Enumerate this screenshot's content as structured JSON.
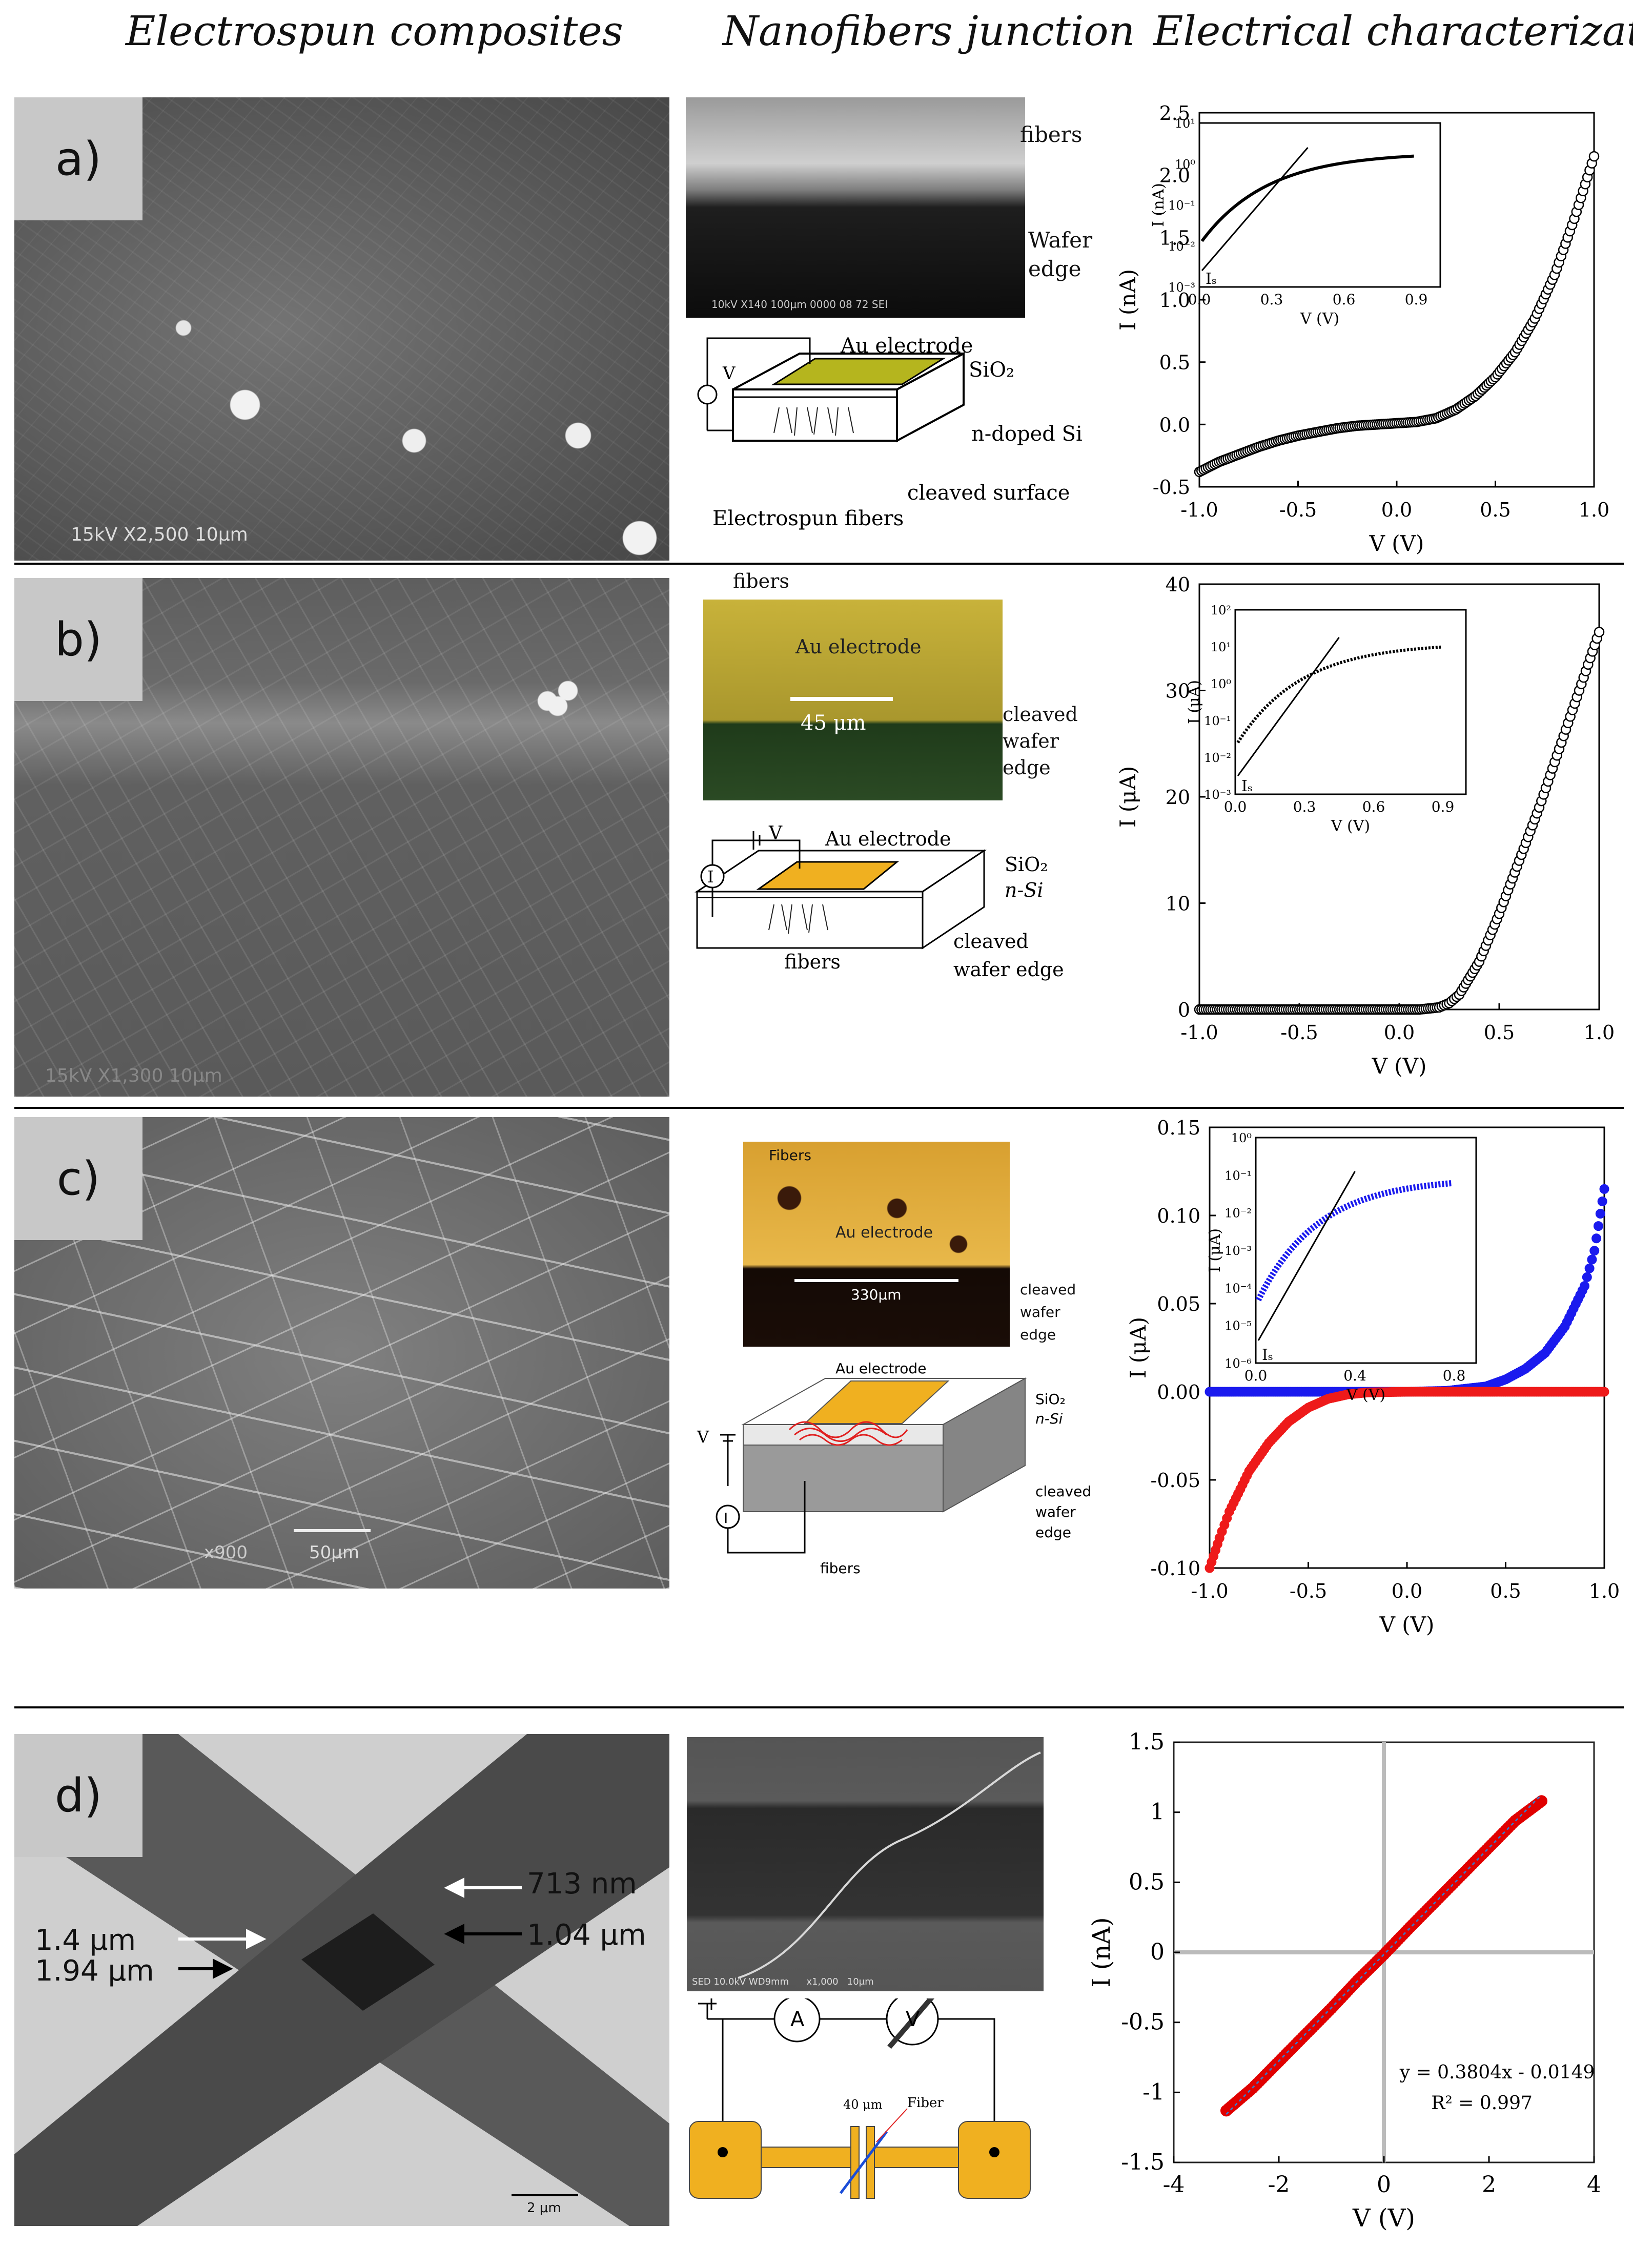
{
  "headers": {
    "col1": "Electrospun composites",
    "col2": "Nanofibers junction",
    "col3": "Electrical characterization"
  },
  "panels": {
    "a": {
      "label": "a)",
      "sem_scale": "15kV  X2,500  10μm",
      "junction_labels": {
        "fibers": "fibers",
        "wafer_edge_1": "Wafer",
        "wafer_edge_2": "edge",
        "sem_info": "10kV  X140  100μm 0000 08 72 SEI"
      },
      "schematic_labels": {
        "v": "V",
        "au": "Au electrode",
        "sio2": "SiO₂",
        "ndoped": "n-doped Si",
        "cleaved": "cleaved surface",
        "fibers": "Electrospun fibers"
      }
    },
    "b": {
      "label": "b)",
      "sem_scale": "15kV  X1,300  10μm",
      "junction_labels": {
        "fibers": "fibers",
        "au": "Au electrode",
        "scale": "45 μm",
        "e1": "cleaved",
        "e2": "wafer",
        "e3": "edge"
      },
      "schematic_labels": {
        "v": "V",
        "i": "I",
        "au": "Au electrode",
        "sio2": "SiO₂",
        "nsi": "n-Si",
        "fibers": "fibers",
        "cleaved1": "cleaved",
        "cleaved2": "wafer  edge"
      }
    },
    "c": {
      "label": "c)",
      "sem_scale": "50μm",
      "sem_mag": "x900",
      "junction_labels": {
        "fibers": "Fibers",
        "au": "Au electrode",
        "scale": "330μm",
        "e1": "cleaved",
        "e2": "wafer",
        "e3": "edge"
      },
      "schematic_labels": {
        "v": "V",
        "i": "I",
        "au": "Au electrode",
        "sio2": "SiO₂",
        "nsi": "n-Si",
        "fibers": "fibers",
        "c1": "cleaved",
        "c2": "wafer",
        "c3": "edge"
      }
    },
    "d": {
      "label": "d)",
      "tem_labels": {
        "l1": "713 nm",
        "l2": "1.4 μm",
        "l3": "1.04 μm",
        "l4": "1.94 μm",
        "scale": "2 μm"
      },
      "sem_info": "SED 10.0kV WD9mm      x1,000   10μm",
      "circuit_labels": {
        "a": "A",
        "v": "V",
        "gap": "40 μm",
        "fiber": "Fiber"
      }
    }
  },
  "chart_data": [
    {
      "type": "scatter",
      "panel": "a",
      "xlabel": "V (V)",
      "ylabel": "I (nA)",
      "xlim": [
        -1.0,
        1.0
      ],
      "ylim": [
        -0.5,
        2.5
      ],
      "xticks": [
        "-1.0",
        "-0.5",
        "0.0",
        "0.5",
        "1.0"
      ],
      "yticks": [
        "-0.5",
        "0.0",
        "0.5",
        "1.0",
        "1.5",
        "2.0",
        "2.5"
      ],
      "series": [
        {
          "marker": "open-circle",
          "color": "#000000",
          "x": [
            -1.0,
            -0.9,
            -0.8,
            -0.7,
            -0.6,
            -0.5,
            -0.4,
            -0.3,
            -0.2,
            -0.1,
            0.0,
            0.1,
            0.2,
            0.3,
            0.4,
            0.5,
            0.6,
            0.7,
            0.8,
            0.9,
            1.0
          ],
          "y": [
            -0.38,
            -0.3,
            -0.24,
            -0.18,
            -0.13,
            -0.09,
            -0.06,
            -0.03,
            -0.01,
            0.0,
            0.01,
            0.02,
            0.05,
            0.12,
            0.23,
            0.38,
            0.58,
            0.85,
            1.2,
            1.65,
            2.15
          ]
        }
      ],
      "inset": {
        "xlabel": "V (V)",
        "ylabel": "I (nA)",
        "scale": "log",
        "xticks": [
          "0.0",
          "0.3",
          "0.6",
          "0.9"
        ],
        "yticks": [
          "10¹",
          "10⁰",
          "10⁻¹",
          "10⁻²",
          "10⁻³"
        ],
        "annotation": "Iₛ"
      }
    },
    {
      "type": "scatter",
      "panel": "b",
      "xlabel": "V (V)",
      "ylabel": "I (μA)",
      "xlim": [
        -1.0,
        1.0
      ],
      "ylim": [
        0,
        40
      ],
      "xticks": [
        "-1.0",
        "-0.5",
        "0.0",
        "0.5",
        "1.0"
      ],
      "yticks": [
        "0",
        "10",
        "20",
        "30",
        "40"
      ],
      "series": [
        {
          "marker": "open-circle",
          "color": "#000000",
          "x": [
            -1.0,
            -0.8,
            -0.6,
            -0.4,
            -0.2,
            0.0,
            0.1,
            0.2,
            0.25,
            0.3,
            0.4,
            0.5,
            0.6,
            0.7,
            0.8,
            0.9,
            1.0
          ],
          "y": [
            0,
            0,
            0,
            0,
            0,
            0,
            0,
            0.2,
            0.6,
            1.4,
            4.5,
            9,
            14,
            19,
            24.5,
            30,
            35.5
          ]
        }
      ],
      "inset": {
        "xlabel": "V (V)",
        "ylabel": "I (μA)",
        "scale": "log",
        "xticks": [
          "0.0",
          "0.3",
          "0.6",
          "0.9"
        ],
        "yticks": [
          "10²",
          "10¹",
          "10⁰",
          "10⁻¹",
          "10⁻²",
          "10⁻³"
        ],
        "annotation": "Iₛ"
      }
    },
    {
      "type": "scatter",
      "panel": "c",
      "xlabel": "V (V)",
      "ylabel": "I (μA)",
      "xlim": [
        -1.0,
        1.0
      ],
      "ylim": [
        -0.1,
        0.15
      ],
      "xticks": [
        "-1.0",
        "-0.5",
        "0.0",
        "0.5",
        "1.0"
      ],
      "yticks": [
        "-0.10",
        "-0.05",
        "0.00",
        "0.05",
        "0.10",
        "0.15"
      ],
      "series": [
        {
          "marker": "filled-circle",
          "color": "#1a1aee",
          "x": [
            -1.0,
            -0.6,
            -0.2,
            0.0,
            0.2,
            0.4,
            0.5,
            0.6,
            0.7,
            0.8,
            0.9,
            0.95,
            1.0
          ],
          "y": [
            0,
            0,
            0,
            0,
            0.0005,
            0.003,
            0.007,
            0.013,
            0.022,
            0.037,
            0.06,
            0.08,
            0.115
          ]
        },
        {
          "marker": "filled-circle",
          "color": "#ee1a1a",
          "x": [
            -1.0,
            -0.95,
            -0.9,
            -0.8,
            -0.7,
            -0.6,
            -0.5,
            -0.4,
            -0.3,
            -0.2,
            0.0,
            0.5,
            1.0
          ],
          "y": [
            -0.1,
            -0.083,
            -0.068,
            -0.045,
            -0.029,
            -0.017,
            -0.009,
            -0.004,
            -0.0015,
            -0.0004,
            0,
            0,
            0
          ]
        }
      ],
      "inset": {
        "xlabel": "V (V)",
        "ylabel": "I (μA)",
        "scale": "log",
        "xticks": [
          "0.0",
          "0.4",
          "0.8"
        ],
        "yticks": [
          "10⁰",
          "10⁻¹",
          "10⁻²",
          "10⁻³",
          "10⁻⁴",
          "10⁻⁵",
          "10⁻⁶"
        ],
        "annotation": "Iₛ"
      }
    },
    {
      "type": "scatter",
      "panel": "d",
      "xlabel": "V (V)",
      "ylabel": "I (nA)",
      "xlim": [
        -4,
        4
      ],
      "ylim": [
        -1.5,
        1.5
      ],
      "xticks": [
        "-4",
        "-2",
        "0",
        "2",
        "4"
      ],
      "yticks": [
        "-1.5",
        "-1",
        "-0.5",
        "0",
        "0.5",
        "1",
        "1.5"
      ],
      "series": [
        {
          "marker": "filled-circle",
          "color": "#e00000",
          "x": [
            -3,
            -2.5,
            -2,
            -1.5,
            -1,
            -0.5,
            0,
            0.5,
            1,
            1.5,
            2,
            2.5,
            3
          ],
          "y": [
            -1.13,
            -0.97,
            -0.78,
            -0.59,
            -0.4,
            -0.2,
            -0.015,
            0.18,
            0.37,
            0.56,
            0.75,
            0.94,
            1.08
          ]
        }
      ],
      "fit": {
        "equation": "y = 0.3804x - 0.0149",
        "r2": "R² = 0.997",
        "slope": 0.3804,
        "intercept": -0.0149
      }
    }
  ]
}
